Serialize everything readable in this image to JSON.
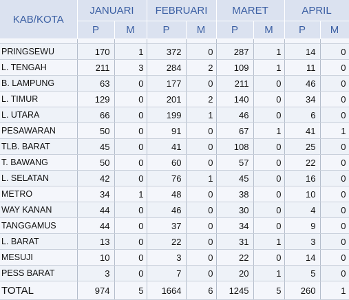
{
  "header": {
    "kab_kota": "KAB/KOTA",
    "months": [
      "JANUARI",
      "FEBRUARI",
      "MARET",
      "APRIL"
    ],
    "sub": [
      "P",
      "M"
    ]
  },
  "rows": [
    {
      "name": "PRINGSEWU",
      "v": [
        "170",
        "1",
        "372",
        "0",
        "287",
        "1",
        "14",
        "0"
      ]
    },
    {
      "name": "L. TENGAH",
      "v": [
        "211",
        "3",
        "284",
        "2",
        "109",
        "1",
        "11",
        "0"
      ]
    },
    {
      "name": "B. LAMPUNG",
      "v": [
        "63",
        "0",
        "177",
        "0",
        "211",
        "0",
        "46",
        "0"
      ]
    },
    {
      "name": "L. TIMUR",
      "v": [
        "129",
        "0",
        "201",
        "2",
        "140",
        "0",
        "34",
        "0"
      ]
    },
    {
      "name": "L. UTARA",
      "v": [
        "66",
        "0",
        "199",
        "1",
        "46",
        "0",
        "6",
        "0"
      ]
    },
    {
      "name": "PESAWARAN",
      "v": [
        "50",
        "0",
        "91",
        "0",
        "67",
        "1",
        "41",
        "1"
      ]
    },
    {
      "name": "TLB. BARAT",
      "v": [
        "45",
        "0",
        "41",
        "0",
        "108",
        "0",
        "25",
        "0"
      ]
    },
    {
      "name": "T. BAWANG",
      "v": [
        "50",
        "0",
        "60",
        "0",
        "57",
        "0",
        "22",
        "0"
      ]
    },
    {
      "name": "L. SELATAN",
      "v": [
        "42",
        "0",
        "76",
        "1",
        "45",
        "0",
        "16",
        "0"
      ]
    },
    {
      "name": "METRO",
      "v": [
        "34",
        "1",
        "48",
        "0",
        "38",
        "0",
        "10",
        "0"
      ]
    },
    {
      "name": "WAY KANAN",
      "v": [
        "44",
        "0",
        "46",
        "0",
        "30",
        "0",
        "4",
        "0"
      ]
    },
    {
      "name": "TANGGAMUS",
      "v": [
        "44",
        "0",
        "37",
        "0",
        "34",
        "0",
        "9",
        "0"
      ]
    },
    {
      "name": "L. BARAT",
      "v": [
        "13",
        "0",
        "22",
        "0",
        "31",
        "1",
        "3",
        "0"
      ]
    },
    {
      "name": "MESUJI",
      "v": [
        "10",
        "0",
        "3",
        "0",
        "22",
        "0",
        "14",
        "0"
      ]
    },
    {
      "name": "PESS BARAT",
      "v": [
        "3",
        "0",
        "7",
        "0",
        "20",
        "1",
        "5",
        "0"
      ]
    }
  ],
  "total": {
    "name": "TOTAL",
    "v": [
      "974",
      "5",
      "1664",
      "6",
      "1245",
      "5",
      "260",
      "1"
    ]
  },
  "colors": {
    "header_bg": "#dbe2f0",
    "header_text": "#3b5fa3",
    "row_bg": "#eef2f8"
  }
}
